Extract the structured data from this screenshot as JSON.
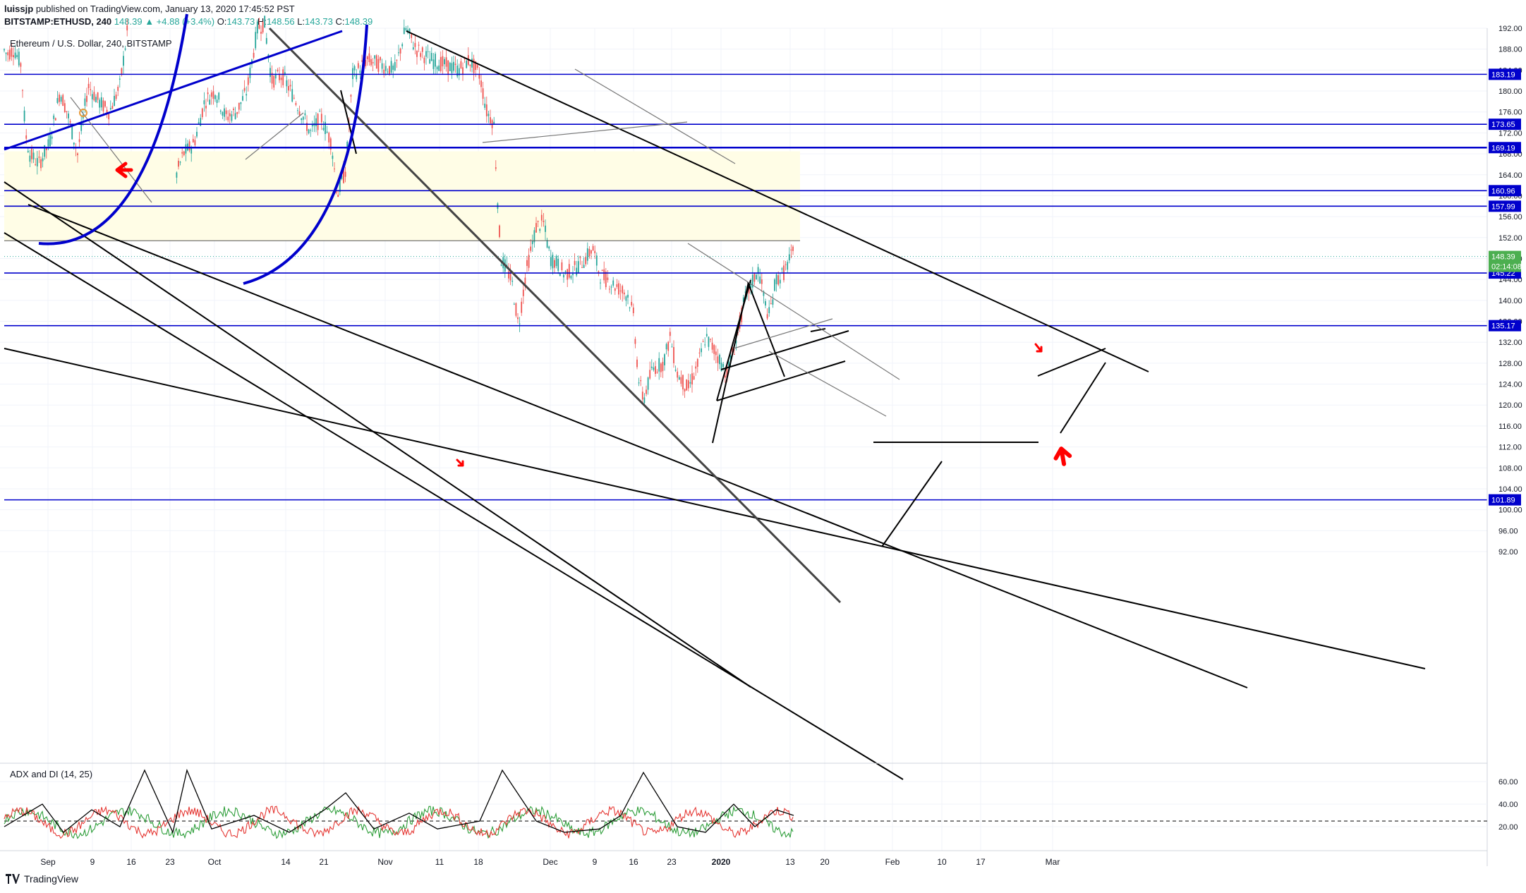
{
  "header": {
    "publisher": "luissjp",
    "published_text": "published on TradingView.com, January 13, 2020 17:45:52 PST",
    "symbol": "BITSTAMP:ETHUSD, 240",
    "last": "148.39",
    "change": "▲ +4.88 (+3.4%)",
    "o_label": "O:",
    "o": "143.73",
    "h_label": "H:",
    "h": "148.56",
    "l_label": "L:",
    "l": "143.73",
    "c_label": "C:",
    "c": "148.39"
  },
  "footer": {
    "brand": "TradingView",
    "logo_icon": "tradingview-logo-icon"
  },
  "colors": {
    "up": "#26a69a",
    "down": "#ef5350",
    "level": "#0000cc",
    "zone": "#fffde6",
    "arrow": "#ff0000",
    "adx": "#000000",
    "di_plus": "#2e9e3a",
    "di_minus": "#e53935",
    "price_badge": "#4caf50"
  },
  "chart_data": [
    {
      "type": "candlestick",
      "title": "Ethereum / U.S. Dollar, 240, BITSTAMP",
      "ylim": [
        90,
        194
      ],
      "x_tick_labels": [
        "Sep",
        "9",
        "16",
        "23",
        "Oct",
        "14",
        "21",
        "Nov",
        "11",
        "18",
        "Dec",
        "9",
        "16",
        "23",
        "2020",
        "13",
        "20",
        "Feb",
        "10",
        "17",
        "Mar"
      ],
      "y_tick_labels": [
        "192.00",
        "188.00",
        "184.00",
        "180.00",
        "176.00",
        "172.00",
        "168.00",
        "164.00",
        "160.00",
        "156.00",
        "152.00",
        "148.00",
        "144.00",
        "140.00",
        "136.00",
        "132.00",
        "128.00",
        "124.00",
        "120.00",
        "116.00",
        "112.00",
        "108.00",
        "104.00",
        "100.00",
        "96.00",
        "92.00"
      ],
      "horizontal_levels": [
        {
          "price": 183.19,
          "label": "183.19"
        },
        {
          "price": 173.65,
          "label": "173.65"
        },
        {
          "price": 169.19,
          "label": "169.19"
        },
        {
          "price": 160.96,
          "label": "160.96"
        },
        {
          "price": 157.99,
          "label": "157.99"
        },
        {
          "price": 145.22,
          "label": "145.22"
        },
        {
          "price": 135.17,
          "label": "135.17"
        },
        {
          "price": 101.89,
          "label": "101.89"
        }
      ],
      "last_price": {
        "value": 148.39,
        "label": "148.39",
        "countdown": "02:14:08"
      },
      "zone": {
        "from": 151.4,
        "to": 168.5
      },
      "price_path": [
        [
          0,
          189
        ],
        [
          10,
          187
        ],
        [
          20,
          188
        ],
        [
          30,
          185
        ],
        [
          36,
          172
        ],
        [
          42,
          168
        ],
        [
          55,
          166
        ],
        [
          70,
          170
        ],
        [
          85,
          180
        ],
        [
          95,
          176
        ],
        [
          110,
          168
        ],
        [
          125,
          181
        ],
        [
          140,
          178
        ],
        [
          155,
          176
        ],
        [
          170,
          181
        ],
        [
          185,
          196
        ],
        [
          248,
          196
        ],
        [
          250,
          164
        ],
        [
          260,
          168
        ],
        [
          275,
          170
        ],
        [
          290,
          178
        ],
        [
          305,
          180
        ],
        [
          320,
          175
        ],
        [
          335,
          176
        ],
        [
          350,
          180
        ],
        [
          365,
          192
        ],
        [
          375,
          193
        ],
        [
          385,
          182
        ],
        [
          400,
          183
        ],
        [
          420,
          178
        ],
        [
          440,
          172
        ],
        [
          455,
          175
        ],
        [
          470,
          170
        ],
        [
          478,
          160
        ],
        [
          490,
          165
        ],
        [
          500,
          183
        ],
        [
          520,
          186
        ],
        [
          540,
          185
        ],
        [
          560,
          184
        ],
        [
          575,
          192
        ],
        [
          590,
          188
        ],
        [
          610,
          186
        ],
        [
          630,
          185
        ],
        [
          650,
          184
        ],
        [
          665,
          186
        ],
        [
          680,
          183
        ],
        [
          690,
          176
        ],
        [
          700,
          174
        ],
        [
          705,
          160
        ],
        [
          710,
          148
        ],
        [
          725,
          144
        ],
        [
          735,
          135
        ],
        [
          745,
          145
        ],
        [
          760,
          154
        ],
        [
          770,
          155
        ],
        [
          780,
          148
        ],
        [
          790,
          147
        ],
        [
          800,
          145
        ],
        [
          815,
          146
        ],
        [
          830,
          148
        ],
        [
          840,
          150
        ],
        [
          850,
          145
        ],
        [
          870,
          143
        ],
        [
          890,
          141
        ],
        [
          898,
          137
        ],
        [
          905,
          125
        ],
        [
          912,
          121
        ],
        [
          925,
          127
        ],
        [
          940,
          128
        ],
        [
          950,
          133
        ],
        [
          960,
          126
        ],
        [
          975,
          123
        ],
        [
          990,
          128
        ],
        [
          1000,
          133
        ],
        [
          1015,
          130
        ],
        [
          1030,
          126
        ],
        [
          1045,
          133
        ],
        [
          1055,
          140
        ],
        [
          1065,
          143
        ],
        [
          1075,
          146
        ],
        [
          1085,
          139
        ],
        [
          1090,
          137
        ],
        [
          1100,
          144
        ],
        [
          1110,
          145
        ],
        [
          1120,
          148
        ],
        [
          1125,
          149
        ]
      ]
    },
    {
      "type": "line",
      "title": "ADX and DI (14, 25)",
      "ylim": [
        0,
        75
      ],
      "y_tick_labels": [
        "60.00",
        "40.00",
        "20.00"
      ],
      "reference_level": 25
    }
  ]
}
